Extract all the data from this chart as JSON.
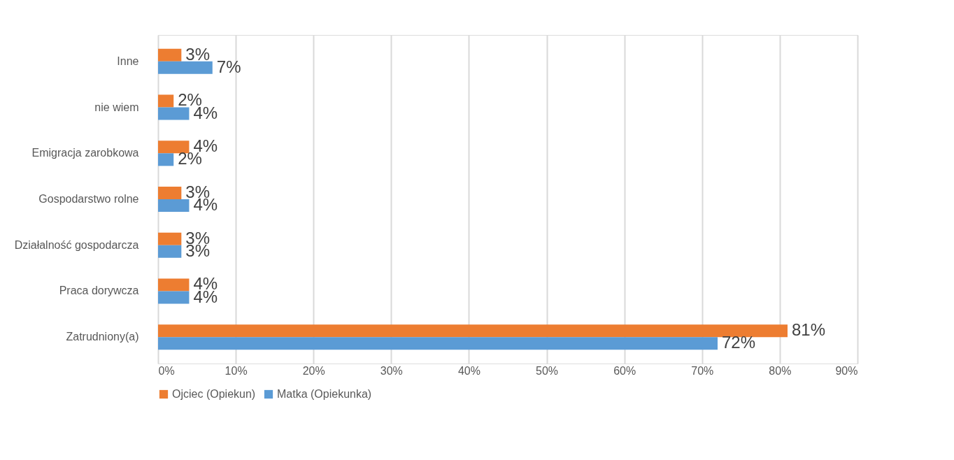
{
  "chart_data": {
    "type": "bar",
    "orientation": "horizontal",
    "categories": [
      "Inne",
      "nie wiem",
      "Emigracja zarobkowa",
      "Gospodarstwo rolne",
      "Działalność gospodarcza",
      "Praca dorywcza",
      "Zatrudniony(a)"
    ],
    "series": [
      {
        "name": "Ojciec (Opiekun)",
        "color": "#ed7d31",
        "values": [
          3,
          2,
          4,
          3,
          3,
          4,
          81
        ],
        "value_labels": [
          "3%",
          "2%",
          "4%",
          "3%",
          "3%",
          "4%",
          "81%"
        ]
      },
      {
        "name": "Matka (Opiekunka)",
        "color": "#5b9bd5",
        "values": [
          7,
          4,
          2,
          4,
          3,
          4,
          72
        ],
        "value_labels": [
          "7%",
          "4%",
          "2%",
          "4%",
          "3%",
          "4%",
          "72%"
        ]
      }
    ],
    "xlim": [
      0,
      90
    ],
    "xticks": [
      {
        "value": 0,
        "label": "0%"
      },
      {
        "value": 10,
        "label": "10%"
      },
      {
        "value": 20,
        "label": "20%"
      },
      {
        "value": 30,
        "label": "30%"
      },
      {
        "value": 40,
        "label": "40%"
      },
      {
        "value": 50,
        "label": "50%"
      },
      {
        "value": 60,
        "label": "60%"
      },
      {
        "value": 70,
        "label": "70%"
      },
      {
        "value": 80,
        "label": "80%"
      },
      {
        "value": 90,
        "label": "90%"
      }
    ],
    "grid": "x",
    "legend": "bottom"
  }
}
